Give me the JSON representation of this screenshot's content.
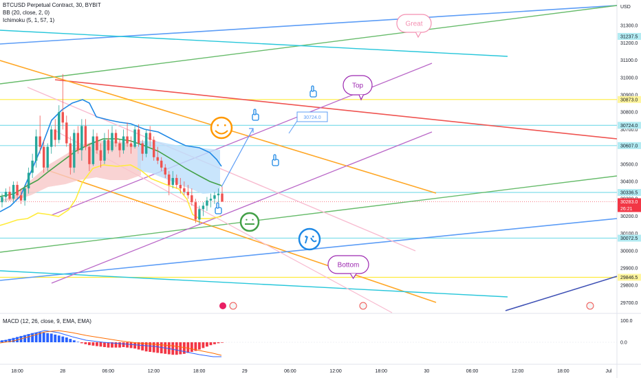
{
  "legend": {
    "symbol": "BTCUSD Perpetual Contract, 30, BYBIT",
    "bb": "BB (20, close, 2, 0)",
    "ichimoku": "Ichimoku (5, 1, 57, 1)",
    "macd": "MACD (12, 26, close, 9, EMA, EMA)"
  },
  "currency": "USD",
  "colors": {
    "up": "#26a69a",
    "down": "#ef5350",
    "bb_basis": "#43a047",
    "bb_upper": "#1e88e5",
    "bb_lower": "#ffeb3b",
    "cloud_bull": "#bbdefb",
    "cloud_bear": "#f8c8c8",
    "macd_line": "#2962ff",
    "signal_line": "#ff6d00",
    "hist_pos": "#2962ff",
    "hist_neg": "#f23645",
    "last_price": "#f23645"
  },
  "chart_data": {
    "type": "candlestick",
    "y_range": [
      29650,
      31400
    ],
    "y_ticks": [
      29700,
      29800,
      29900,
      30000,
      30100,
      30200,
      30300,
      30400,
      30500,
      30600,
      30700,
      30800,
      30900,
      31000,
      31100,
      31200,
      31300
    ],
    "x_ticks": [
      "18:00",
      "28",
      "06:00",
      "12:00",
      "18:00",
      "29",
      "06:00",
      "12:00",
      "18:00",
      "30",
      "06:00",
      "12:00",
      "18:00",
      "Jul"
    ],
    "price_tags": [
      {
        "label": "31237.5",
        "value": 31237.5,
        "color": "#b2ebf2"
      },
      {
        "label": "30873.0",
        "value": 30873.0,
        "color": "#fff59d"
      },
      {
        "label": "30724.0",
        "value": 30724.0,
        "color": "#b2ebf2"
      },
      {
        "label": "30607.0",
        "value": 30607.0,
        "color": "#b2ebf2"
      },
      {
        "label": "30336.5",
        "value": 30336.5,
        "color": "#b2ebf2"
      },
      {
        "label": "30283.0",
        "value": 30283.0,
        "color": "#f23645"
      },
      {
        "label": "30072.5",
        "value": 30072.5,
        "color": "#b2ebf2"
      },
      {
        "label": "29846.5",
        "value": 29846.5,
        "color": "#fff59d"
      }
    ],
    "countdown": "26:21",
    "horizontal_levels": [
      {
        "value": 30873.0,
        "color": "#ffeb3b"
      },
      {
        "value": 30724.0,
        "color": "#80deea"
      },
      {
        "value": 30607.0,
        "color": "#80deea"
      },
      {
        "value": 30336.5,
        "color": "#80deea"
      },
      {
        "value": 30072.5,
        "color": "#80deea"
      },
      {
        "value": 29846.5,
        "color": "#ffeb3b"
      }
    ],
    "candles": [
      [
        30280,
        30330,
        30250,
        30310
      ],
      [
        30310,
        30360,
        30280,
        30340
      ],
      [
        30340,
        30370,
        30290,
        30300
      ],
      [
        30300,
        30400,
        30280,
        30380
      ],
      [
        30380,
        30400,
        30300,
        30320
      ],
      [
        30320,
        30360,
        30270,
        30290
      ],
      [
        30290,
        30380,
        30260,
        30360
      ],
      [
        30360,
        30480,
        30330,
        30450
      ],
      [
        30450,
        30560,
        30420,
        30520
      ],
      [
        30520,
        30700,
        30480,
        30660
      ],
      [
        30660,
        30780,
        30560,
        30600
      ],
      [
        30600,
        30640,
        30450,
        30480
      ],
      [
        30480,
        30620,
        30460,
        30600
      ],
      [
        30600,
        30720,
        30560,
        30700
      ],
      [
        30700,
        30760,
        30600,
        30640
      ],
      [
        30640,
        30840,
        30620,
        30800
      ],
      [
        30800,
        31020,
        30700,
        30740
      ],
      [
        30740,
        30780,
        30600,
        30620
      ],
      [
        30620,
        30660,
        30440,
        30480
      ],
      [
        30480,
        30700,
        30450,
        30680
      ],
      [
        30680,
        30720,
        30560,
        30580
      ],
      [
        30580,
        30760,
        30520,
        30720
      ],
      [
        30720,
        30760,
        30580,
        30600
      ],
      [
        30600,
        30620,
        30460,
        30500
      ],
      [
        30500,
        30700,
        30490,
        30660
      ],
      [
        30660,
        30680,
        30560,
        30580
      ],
      [
        30580,
        30620,
        30480,
        30520
      ],
      [
        30520,
        30680,
        30500,
        30640
      ],
      [
        30640,
        30700,
        30560,
        30580
      ],
      [
        30580,
        30720,
        30570,
        30680
      ],
      [
        30680,
        30700,
        30600,
        30620
      ],
      [
        30620,
        30640,
        30540,
        30580
      ],
      [
        30580,
        30700,
        30560,
        30660
      ],
      [
        30660,
        30740,
        30600,
        30620
      ],
      [
        30620,
        30660,
        30560,
        30600
      ],
      [
        30600,
        30720,
        30590,
        30700
      ],
      [
        30700,
        30730,
        30600,
        30620
      ],
      [
        30620,
        30640,
        30520,
        30560
      ],
      [
        30560,
        30700,
        30540,
        30680
      ],
      [
        30680,
        30720,
        30600,
        30640
      ],
      [
        30640,
        30660,
        30520,
        30540
      ],
      [
        30540,
        30600,
        30500,
        30520
      ],
      [
        30520,
        30540,
        30460,
        30480
      ],
      [
        30480,
        30500,
        30420,
        30440
      ],
      [
        30440,
        30460,
        30320,
        30380
      ],
      [
        30380,
        30460,
        30360,
        30420
      ],
      [
        30420,
        30440,
        30360,
        30380
      ],
      [
        30380,
        30420,
        30330,
        30360
      ],
      [
        30360,
        30400,
        30320,
        30340
      ],
      [
        30340,
        30380,
        30300,
        30320
      ],
      [
        30320,
        30360,
        30260,
        30280
      ],
      [
        30280,
        30300,
        30160,
        30180
      ],
      [
        30180,
        30260,
        30150,
        30240
      ],
      [
        30240,
        30280,
        30200,
        30260
      ],
      [
        30260,
        30310,
        30230,
        30290
      ],
      [
        30290,
        30330,
        30250,
        30300
      ],
      [
        30300,
        30340,
        30270,
        30320
      ],
      [
        30320,
        30360,
        30280,
        30330
      ],
      [
        30330,
        30370,
        30290,
        30283
      ]
    ],
    "macd_axis": [
      "100.0",
      "0.0"
    ],
    "macd_hist": [
      8,
      10,
      14,
      18,
      22,
      26,
      30,
      34,
      38,
      40,
      42,
      40,
      38,
      36,
      32,
      28,
      24,
      20,
      14,
      8,
      2,
      -4,
      -8,
      -12,
      -14,
      -16,
      -18,
      -20,
      -22,
      -22,
      -22,
      -22,
      -20,
      -22,
      -24,
      -26,
      -30,
      -34,
      -38,
      -40,
      -42,
      -44,
      -46,
      -48,
      -50,
      -52,
      -52,
      -50,
      -48,
      -44,
      -40,
      -36,
      -30,
      -24,
      -18,
      -12,
      -8,
      -4,
      -2
    ],
    "annotations": {
      "great": "Great",
      "top": "Top",
      "bottom": "Bottom",
      "price_label": "30724.0"
    }
  }
}
